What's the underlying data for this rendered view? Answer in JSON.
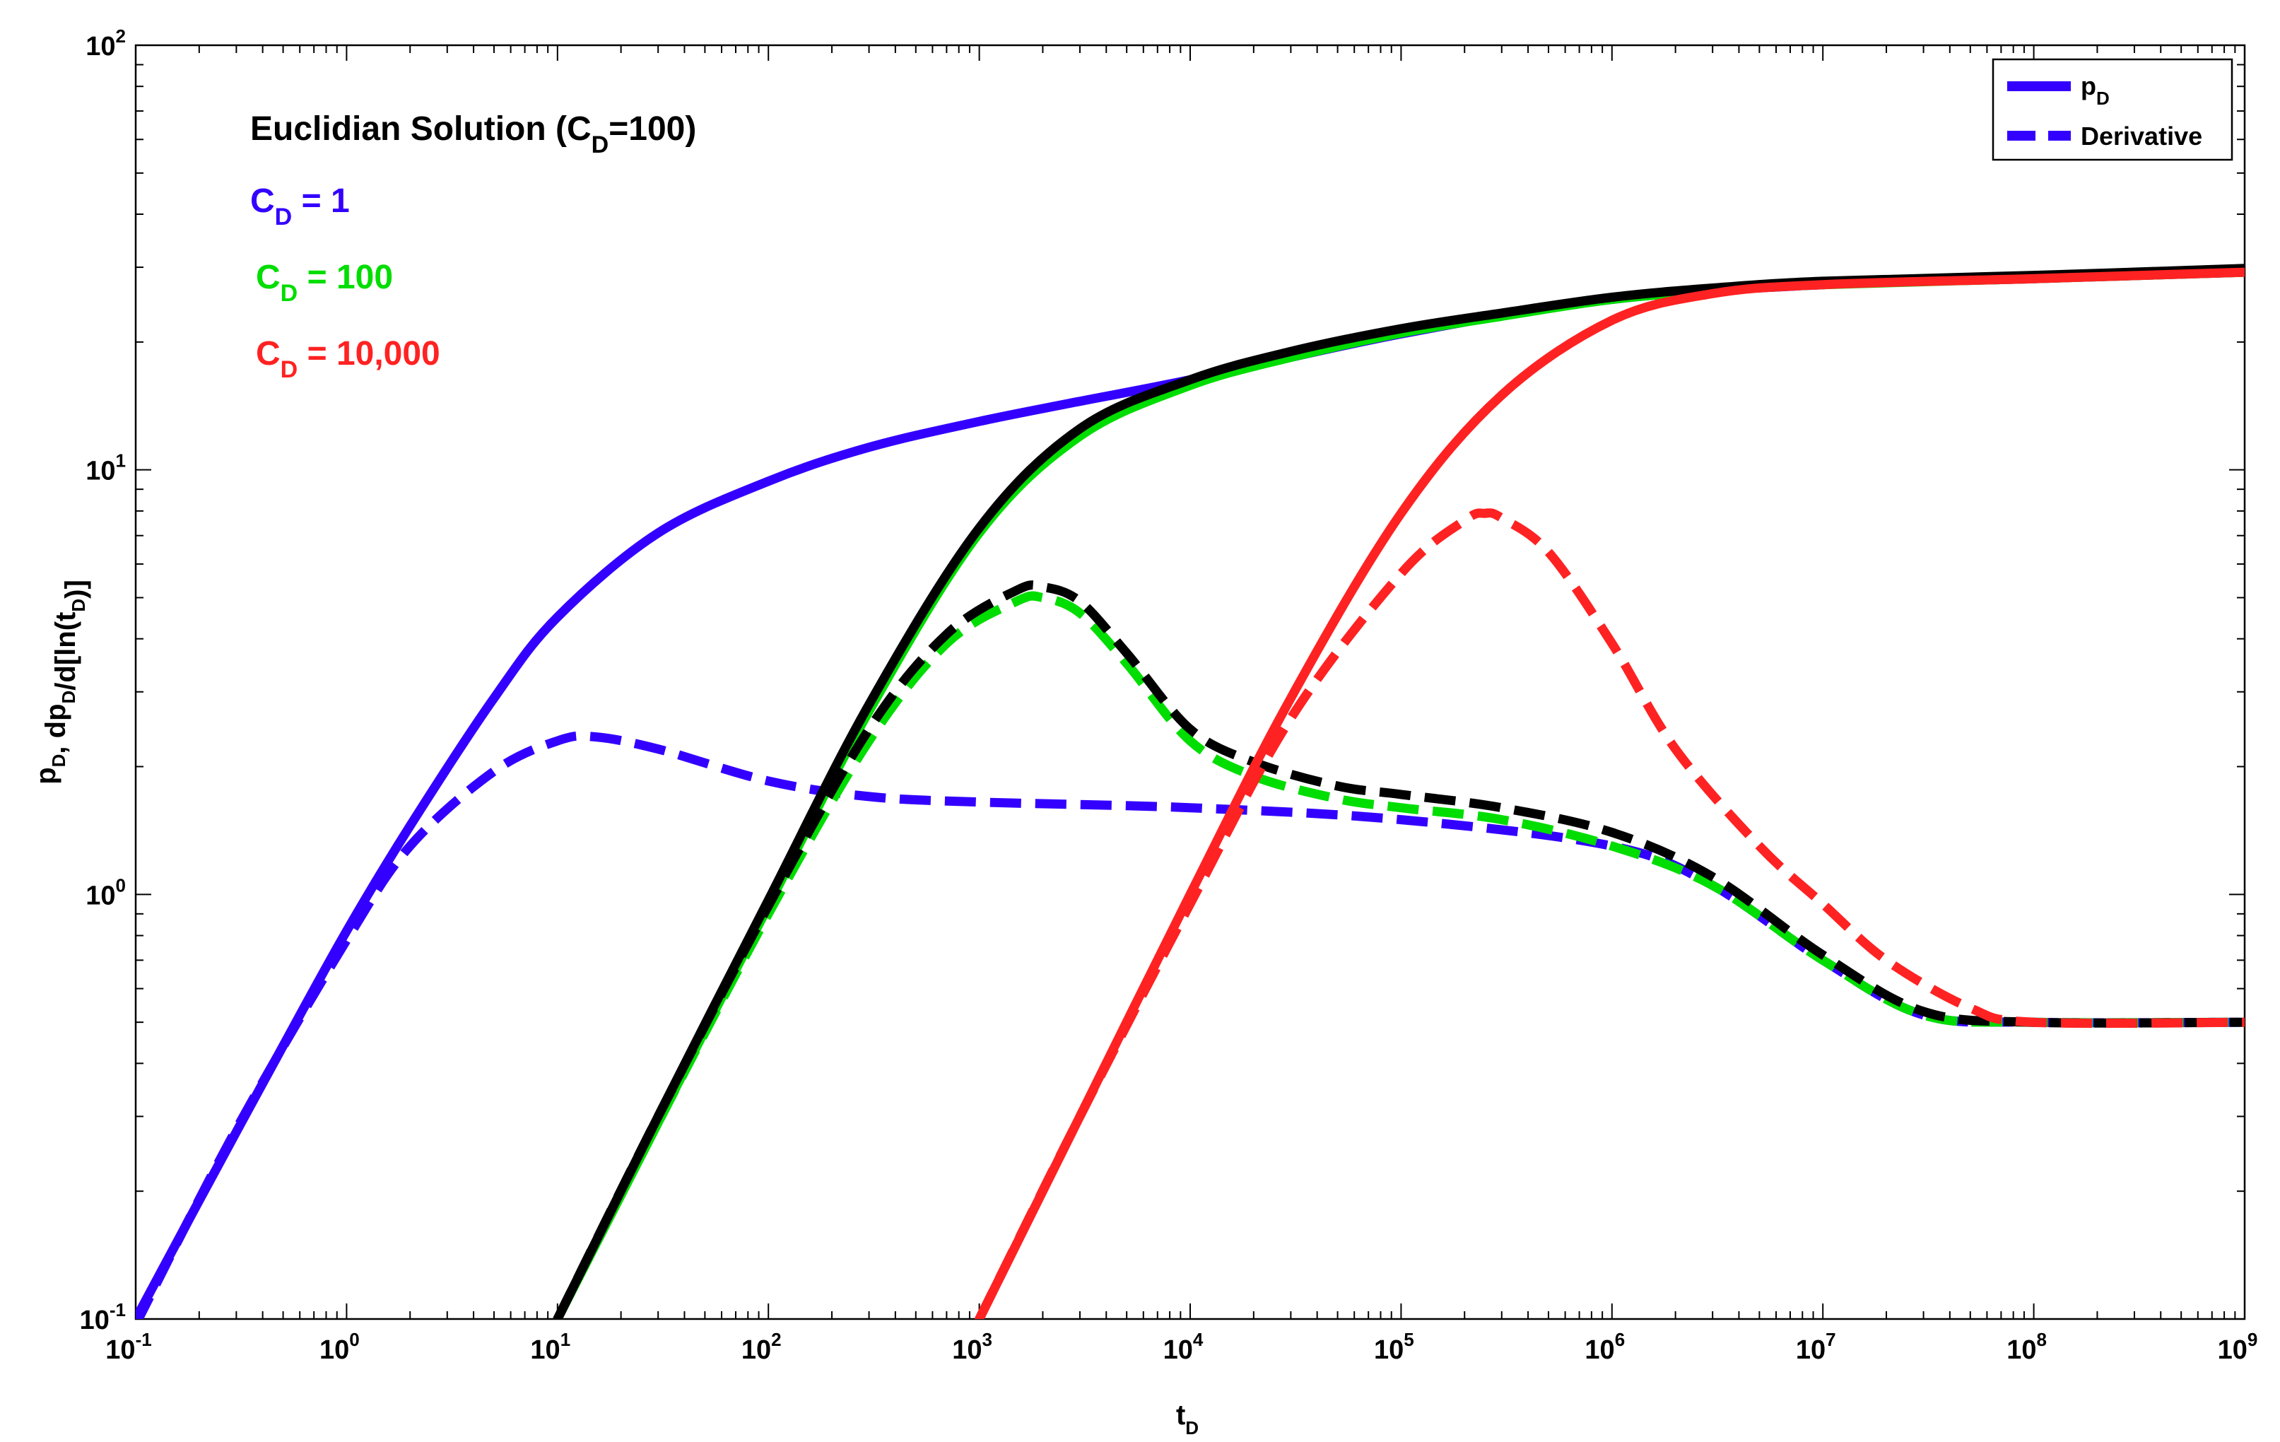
{
  "chart_data": {
    "type": "line",
    "title": "",
    "xlabel": {
      "main": "t",
      "sub": "D"
    },
    "ylabel": {
      "parts": [
        {
          "t": "p",
          "sub": "D"
        },
        {
          "t": ", dp",
          "sub": "D"
        },
        {
          "t": "/d[ln(t",
          "sub": "D"
        },
        {
          "t": ")]",
          "sub": ""
        }
      ]
    },
    "x_scale": "log",
    "y_scale": "log",
    "xlim": [
      0.1,
      1000000000
    ],
    "ylim": [
      0.1,
      100
    ],
    "x_ticks": [
      {
        "base": "10",
        "exp": "-1",
        "value": 0.1
      },
      {
        "base": "10",
        "exp": "0",
        "value": 1
      },
      {
        "base": "10",
        "exp": "1",
        "value": 10
      },
      {
        "base": "10",
        "exp": "2",
        "value": 100
      },
      {
        "base": "10",
        "exp": "3",
        "value": 1000
      },
      {
        "base": "10",
        "exp": "4",
        "value": 10000
      },
      {
        "base": "10",
        "exp": "5",
        "value": 100000
      },
      {
        "base": "10",
        "exp": "6",
        "value": 1000000
      },
      {
        "base": "10",
        "exp": "7",
        "value": 10000000
      },
      {
        "base": "10",
        "exp": "8",
        "value": 100000000
      },
      {
        "base": "10",
        "exp": "9",
        "value": 1000000000
      }
    ],
    "y_ticks": [
      {
        "base": "10",
        "exp": "-1",
        "value": 0.1
      },
      {
        "base": "10",
        "exp": "0",
        "value": 1
      },
      {
        "base": "10",
        "exp": "1",
        "value": 10
      },
      {
        "base": "10",
        "exp": "2",
        "value": 100
      }
    ],
    "grid": false,
    "annotations": [
      {
        "pre": "Euclidian Solution (C",
        "sub": "D",
        "post": "=100)",
        "color": "#000000"
      },
      {
        "pre": "C",
        "sub": "D",
        "post": " = 1",
        "color": "#3300ff"
      },
      {
        "pre": "C",
        "sub": "D",
        "post": " = 100",
        "color": "#00dd00"
      },
      {
        "pre": "C",
        "sub": "D",
        "post": " = 10,000",
        "color": "#ff2222"
      }
    ],
    "legend": {
      "placement": "top-right",
      "entries": [
        {
          "main": "p",
          "sub": "D",
          "style": "solid",
          "color": "#3300ff"
        },
        {
          "main": "Derivative",
          "sub": "",
          "style": "dashed",
          "color": "#3300ff"
        }
      ]
    },
    "series": [
      {
        "color": "#3300ff",
        "style": "solid",
        "x": [
          0.1,
          0.2,
          0.5,
          1,
          2,
          5,
          10,
          30,
          100,
          300,
          1000,
          3000,
          10000,
          100000,
          1000000,
          10000000,
          100000000,
          1000000000
        ],
        "y": [
          0.1,
          0.19,
          0.44,
          0.82,
          1.45,
          2.9,
          4.5,
          7.1,
          9.4,
          11.3,
          13,
          14.5,
          16.3,
          20.9,
          25.2,
          27.3,
          28.2,
          29.2
        ]
      },
      {
        "color": "#3300ff",
        "style": "dashed",
        "x": [
          0.1,
          0.3,
          1,
          2,
          5,
          10,
          15,
          30,
          100,
          300,
          1000,
          10000,
          100000,
          1000000,
          3000000,
          10000000,
          30000000,
          100000000,
          1000000000
        ],
        "y": [
          0.097,
          0.28,
          0.78,
          1.3,
          1.95,
          2.3,
          2.35,
          2.2,
          1.85,
          1.7,
          1.65,
          1.6,
          1.5,
          1.3,
          1.05,
          0.7,
          0.52,
          0.5,
          0.5
        ]
      },
      {
        "color": "#00dd00",
        "style": "solid",
        "x": [
          10,
          30,
          100,
          300,
          1000,
          3000,
          10000,
          30000,
          100000,
          300000,
          1000000,
          3000000,
          10000000,
          100000000,
          1000000000
        ],
        "y": [
          0.1,
          0.29,
          0.94,
          2.7,
          7.1,
          12,
          15.8,
          18.4,
          21,
          23,
          25.2,
          26.4,
          27.3,
          28.2,
          29.2
        ]
      },
      {
        "color": "#00dd00",
        "style": "dashed",
        "x": [
          10,
          30,
          100,
          300,
          700,
          1500,
          2000,
          3000,
          5000,
          10000,
          20000,
          50000,
          100000,
          300000,
          1000000,
          3000000,
          10000000,
          30000000,
          100000000,
          1000000000
        ],
        "y": [
          0.1,
          0.29,
          0.9,
          2.3,
          3.9,
          4.9,
          5,
          4.6,
          3.5,
          2.3,
          1.9,
          1.68,
          1.6,
          1.5,
          1.3,
          1.05,
          0.7,
          0.52,
          0.5,
          0.5
        ]
      },
      {
        "color": "#000000",
        "style": "solid",
        "x": [
          10,
          30,
          100,
          300,
          1000,
          3000,
          10000,
          30000,
          100000,
          300000,
          1000000,
          3000000,
          10000000,
          100000000,
          1000000000
        ],
        "y": [
          0.1,
          0.3,
          0.97,
          2.8,
          7.3,
          12.5,
          16.3,
          19,
          21.5,
          23.4,
          25.5,
          26.8,
          27.8,
          28.7,
          29.8
        ]
      },
      {
        "color": "#000000",
        "style": "dashed",
        "x": [
          10,
          30,
          100,
          300,
          700,
          1500,
          2000,
          3000,
          5000,
          10000,
          20000,
          50000,
          100000,
          300000,
          1000000,
          3000000,
          10000000,
          30000000,
          100000000,
          1000000000
        ],
        "y": [
          0.1,
          0.3,
          0.94,
          2.45,
          4.1,
          5.2,
          5.3,
          4.9,
          3.7,
          2.45,
          2.05,
          1.8,
          1.72,
          1.6,
          1.4,
          1.1,
          0.72,
          0.53,
          0.5,
          0.5
        ]
      },
      {
        "color": "#ff2222",
        "style": "solid",
        "x": [
          1000,
          3000,
          10000,
          30000,
          100000,
          300000,
          1000000,
          3000000,
          10000000,
          100000000,
          1000000000
        ],
        "y": [
          0.1,
          0.3,
          1.0,
          2.9,
          7.9,
          15,
          22.5,
          26,
          27.3,
          28.2,
          29.2
        ]
      },
      {
        "color": "#ff2222",
        "style": "dashed",
        "x": [
          1000,
          3000,
          10000,
          30000,
          100000,
          200000,
          250000,
          300000,
          500000,
          1000000,
          2000000,
          5000000,
          10000000,
          20000000,
          50000000,
          100000000,
          1000000000
        ],
        "y": [
          0.1,
          0.3,
          0.95,
          2.6,
          5.7,
          7.6,
          7.9,
          7.7,
          6.4,
          3.9,
          2.2,
          1.3,
          0.95,
          0.7,
          0.54,
          0.5,
          0.5
        ]
      }
    ]
  }
}
